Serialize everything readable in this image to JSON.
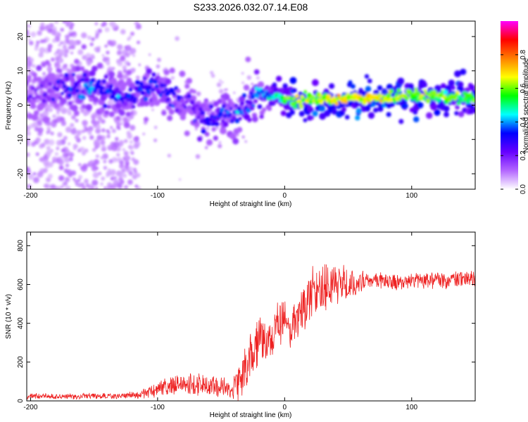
{
  "title": "S233.2026.032.07.14.E08",
  "chart_data": [
    {
      "type": "heatmap",
      "xlabel": "Height of straight line (km)",
      "ylabel": "Frequency (Hz)",
      "xlim": [
        -203,
        150
      ],
      "ylim": [
        -24.5,
        24.5
      ],
      "x_ticks": [
        -200,
        -100,
        0,
        100
      ],
      "y_ticks": [
        -20,
        -10,
        0,
        10,
        20
      ],
      "colorbar": {
        "label": "Normalized spectral amplitude",
        "range": [
          0,
          1
        ],
        "ticks": [
          0.0,
          0.2,
          0.4,
          0.6,
          0.8
        ],
        "tick_labels": [
          "0.0",
          "0.2",
          "0.4",
          "0.6",
          "0.8"
        ],
        "colors": [
          "#ffffff",
          "#b366ff",
          "#6600ff",
          "#0000ff",
          "#00ffff",
          "#00ff00",
          "#ffff00",
          "#ff7f00",
          "#ff0000",
          "#ff00ff"
        ]
      },
      "ridge": {
        "x": [
          -200,
          -185,
          -170,
          -155,
          -140,
          -125,
          -110,
          -100,
          -90,
          -80,
          -70,
          -60,
          -50,
          -40,
          -30,
          -25,
          -20,
          -15,
          -10,
          -5,
          0,
          10,
          20,
          30,
          50,
          70,
          90,
          110,
          130,
          150
        ],
        "y": [
          3,
          4,
          5,
          5,
          4,
          2,
          4,
          5,
          3,
          1,
          -2,
          -5,
          -2,
          -3,
          -1,
          2,
          4,
          3,
          2,
          3,
          2,
          1,
          1.5,
          1.5,
          2,
          2,
          2.5,
          2.5,
          2.5,
          2
        ],
        "amplitude": [
          0.15,
          0.2,
          0.3,
          0.35,
          0.3,
          0.25,
          0.3,
          0.3,
          0.25,
          0.25,
          0.25,
          0.3,
          0.3,
          0.25,
          0.3,
          0.35,
          0.4,
          0.35,
          0.45,
          0.5,
          0.55,
          0.6,
          0.6,
          0.62,
          0.65,
          0.68,
          0.65,
          0.6,
          0.58,
          0.55
        ]
      }
    },
    {
      "type": "line",
      "xlabel": "Height of straight line (km)",
      "ylabel": "SNR (10 * v/v)",
      "xlim": [
        -203,
        150
      ],
      "ylim": [
        0,
        870
      ],
      "x_ticks": [
        -200,
        -100,
        0,
        100
      ],
      "y_ticks": [
        0,
        200,
        400,
        600,
        800
      ],
      "color": "#ee2222",
      "envelope": {
        "x": [
          -203,
          -190,
          -170,
          -150,
          -130,
          -115,
          -110,
          -100,
          -90,
          -80,
          -70,
          -60,
          -50,
          -40,
          -35,
          -30,
          -25,
          -20,
          -15,
          -10,
          -5,
          0,
          5,
          10,
          15,
          20,
          30,
          40,
          50,
          60,
          70,
          80,
          90,
          100,
          110,
          120,
          130,
          140,
          150
        ],
        "mean": [
          25,
          25,
          22,
          25,
          25,
          30,
          40,
          60,
          80,
          85,
          90,
          80,
          70,
          60,
          100,
          180,
          270,
          320,
          300,
          350,
          380,
          400,
          380,
          420,
          500,
          540,
          580,
          600,
          610,
          620,
          620,
          620,
          615,
          620,
          620,
          620,
          620,
          625,
          630
        ],
        "spread": [
          15,
          15,
          15,
          15,
          15,
          18,
          25,
          40,
          50,
          55,
          60,
          55,
          50,
          60,
          90,
          120,
          140,
          120,
          100,
          130,
          120,
          120,
          100,
          120,
          130,
          130,
          130,
          110,
          90,
          50,
          40,
          40,
          40,
          40,
          40,
          40,
          40,
          40,
          40
        ]
      }
    }
  ]
}
